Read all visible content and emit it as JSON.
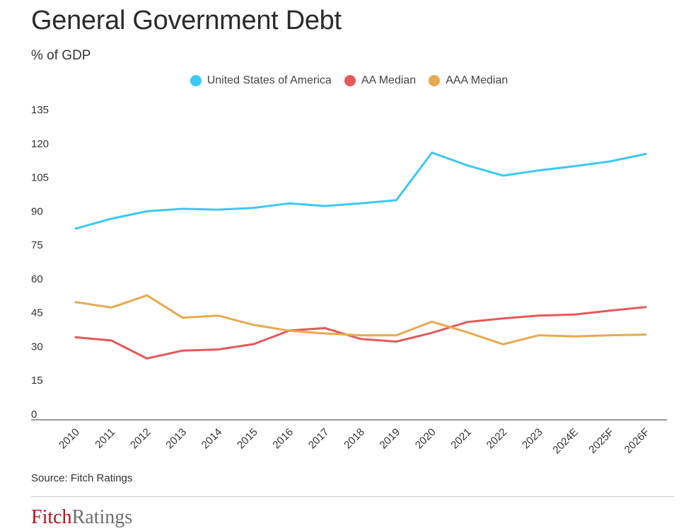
{
  "title": "General Government Debt",
  "subtitle": "% of GDP",
  "source": "Source: Fitch Ratings",
  "logo": {
    "part1": "Fitch",
    "part2": "Ratings"
  },
  "colors": {
    "usa": "#3cc8f5",
    "aa": "#e5595a",
    "aaa": "#e8a94e"
  },
  "chart_data": {
    "type": "line",
    "title": "General Government Debt",
    "ylabel": "% of GDP",
    "xlabel": "",
    "categories": [
      "2010",
      "2011",
      "2012",
      "2013",
      "2014",
      "2015",
      "2016",
      "2017",
      "2018",
      "2019",
      "2020",
      "2021",
      "2022",
      "2023",
      "2024E",
      "2025F",
      "2026F"
    ],
    "ylim": [
      0,
      135
    ],
    "yticks": [
      0,
      15,
      30,
      45,
      60,
      75,
      90,
      105,
      120,
      135
    ],
    "grid": false,
    "legend": "top-center",
    "series": [
      {
        "name": "United States of America",
        "color": "#3cc8f5",
        "values": [
          84.8,
          89.2,
          92.5,
          93.6,
          93.2,
          94.0,
          96.0,
          94.8,
          96.0,
          97.4,
          118.5,
          112.8,
          108.3,
          110.6,
          112.5,
          114.6,
          117.9
        ]
      },
      {
        "name": "AA Median",
        "color": "#e5595a",
        "values": [
          36.6,
          35.2,
          27.2,
          30.7,
          31.2,
          33.6,
          39.6,
          40.7,
          35.9,
          34.7,
          38.6,
          43.4,
          45.0,
          46.2,
          46.7,
          48.4,
          50.0
        ]
      },
      {
        "name": "AAA Median",
        "color": "#e8a94e",
        "values": [
          52.2,
          49.8,
          55.2,
          45.3,
          46.2,
          42.1,
          39.5,
          38.3,
          37.5,
          37.5,
          43.5,
          38.8,
          33.5,
          37.5,
          37.0,
          37.5,
          37.8
        ]
      }
    ]
  }
}
